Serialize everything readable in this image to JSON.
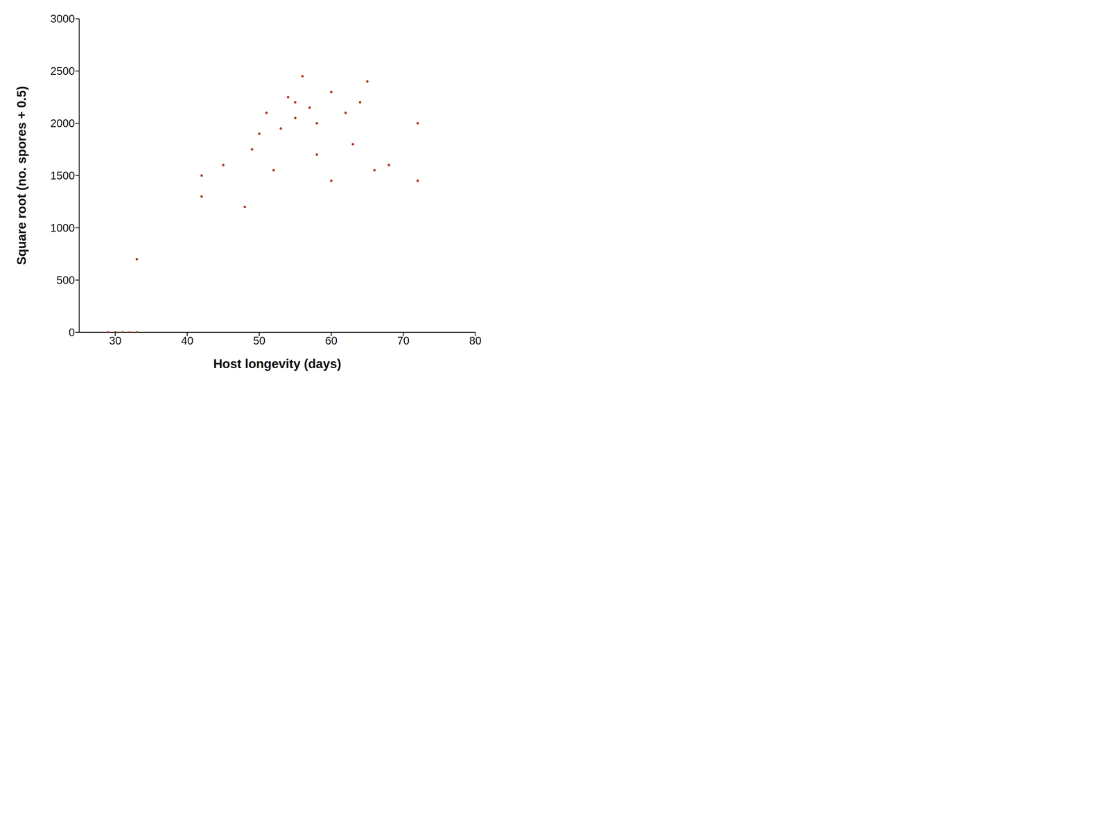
{
  "chart_data": {
    "type": "scatter",
    "x_label": "Host longevity (days)",
    "y_label": "Square root (no. spores + 0.5)",
    "color": "#b8341f",
    "marker": "circle",
    "grid": false,
    "xlim": [
      25,
      80
    ],
    "xticks": [
      30,
      40,
      50,
      60,
      70,
      80
    ],
    "ylim": [
      0,
      3000
    ],
    "yticks": [
      0,
      500,
      1000,
      1500,
      2000,
      2500,
      3000
    ],
    "x": [
      29,
      30,
      31,
      32,
      33,
      33,
      42,
      42,
      45,
      48,
      49,
      50,
      51,
      52,
      53,
      54,
      55,
      55,
      56,
      57,
      58,
      58,
      60,
      60,
      62,
      63,
      64,
      65,
      66,
      68,
      72,
      72
    ],
    "values": [
      0,
      0,
      0,
      0,
      0,
      700,
      1500,
      1300,
      1600,
      1200,
      1750,
      1900,
      2100,
      1550,
      1950,
      2250,
      2050,
      2200,
      2450,
      2150,
      2000,
      1700,
      2300,
      1450,
      2100,
      1800,
      2200,
      2400,
      1550,
      1600,
      1450,
      2000
    ]
  }
}
